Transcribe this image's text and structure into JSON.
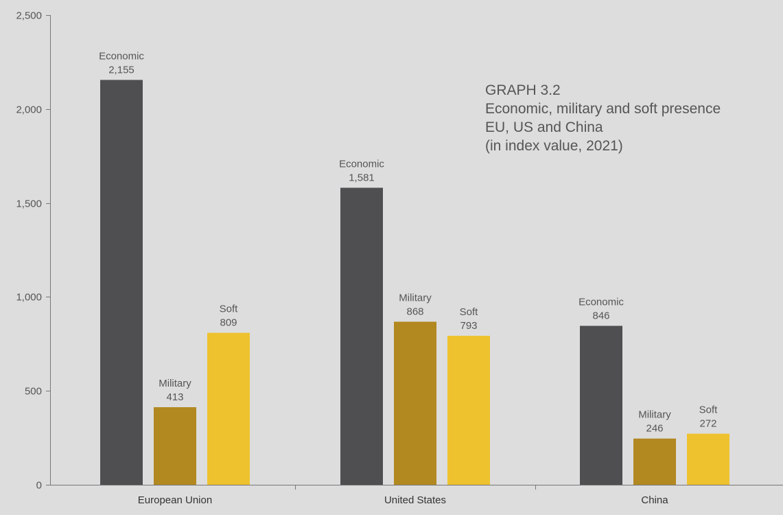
{
  "chart_data": {
    "type": "bar",
    "title_lines": [
      "GRAPH 3.2",
      "Economic, military and soft presence",
      "EU, US and China",
      "(in index value, 2021)"
    ],
    "categories": [
      "European Union",
      "United States",
      "China"
    ],
    "series": [
      {
        "name": "Economic",
        "values": [
          2155,
          1581,
          846
        ],
        "labels": [
          "2,155",
          "1,581",
          "846"
        ],
        "color": "#4f4e51"
      },
      {
        "name": "Military",
        "values": [
          413,
          868,
          246
        ],
        "labels": [
          "413",
          "868",
          "246"
        ],
        "color": "#b28821"
      },
      {
        "name": "Soft",
        "values": [
          809,
          793,
          272
        ],
        "labels": [
          "809",
          "793",
          "272"
        ],
        "color": "#eec22e"
      }
    ],
    "ylim": [
      0,
      2500
    ],
    "yticks": [
      0,
      500,
      1000,
      1500,
      2000,
      2500
    ],
    "ytick_labels": [
      "0",
      "500",
      "1,000",
      "1,500",
      "2,000",
      "2,500"
    ],
    "xlabel": "",
    "ylabel": "",
    "grid": false,
    "legend": "none",
    "colors": {
      "background": "#dddddd",
      "axis": "#777777",
      "text": "#555555"
    }
  }
}
